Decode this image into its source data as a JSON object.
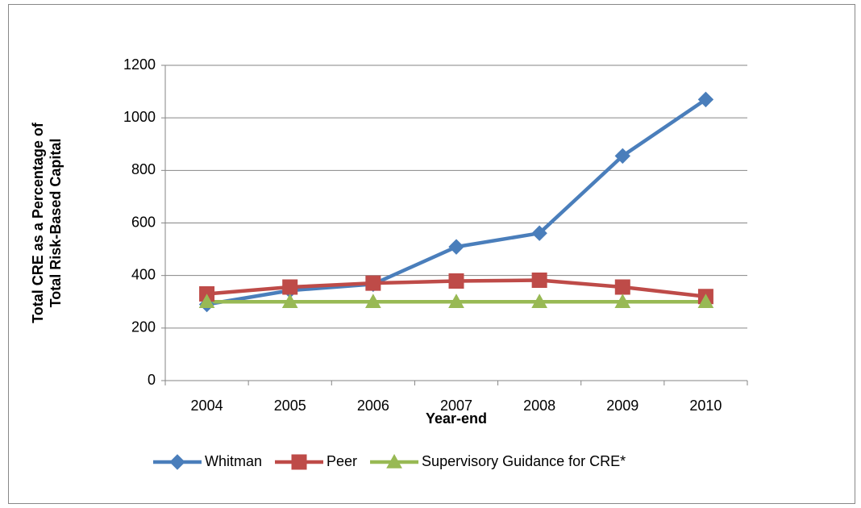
{
  "chart_data": {
    "type": "line",
    "ylabel": [
      "Total CRE as a Percentage of",
      "Total Risk-Based Capital"
    ],
    "xlabel": "Year-end",
    "categories": [
      "2004",
      "2005",
      "2006",
      "2007",
      "2008",
      "2009",
      "2010"
    ],
    "series": [
      {
        "name": "Whitman",
        "color": "#4a7ebb",
        "marker": "diamond",
        "values": [
          290,
          343,
          367,
          509,
          561,
          855,
          1070
        ]
      },
      {
        "name": "Peer",
        "color": "#be4b48",
        "marker": "square",
        "values": [
          330,
          356,
          371,
          379,
          382,
          356,
          320
        ]
      },
      {
        "name": "Supervisory Guidance for CRE*",
        "color": "#98b954",
        "marker": "triangle",
        "values": [
          300,
          300,
          300,
          300,
          300,
          300,
          300
        ]
      }
    ],
    "ylim": [
      0,
      1200
    ],
    "yticks": [
      0,
      200,
      400,
      600,
      800,
      1000,
      1200
    ],
    "grid": true
  }
}
